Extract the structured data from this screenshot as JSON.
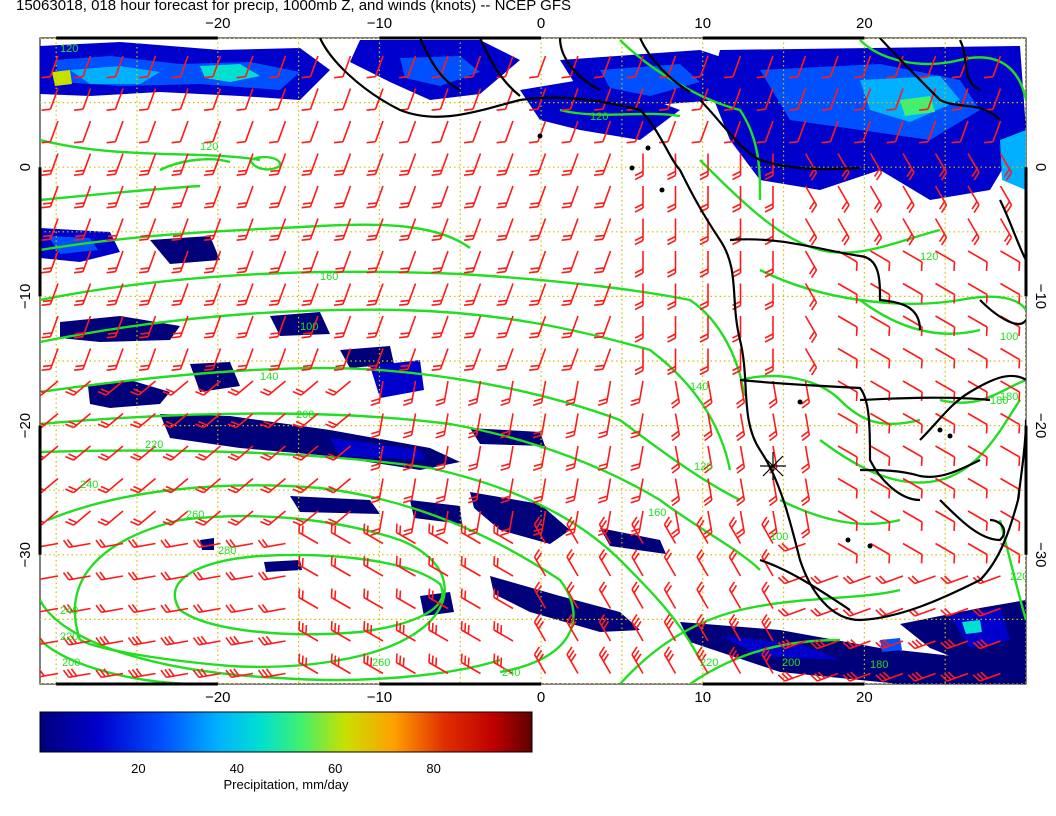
{
  "title": "15063018, 018 hour forecast for precip, 1000mb Z, and winds (knots) -- NCEP GFS",
  "axes": {
    "lon_ticks": [
      -20,
      -10,
      0,
      10,
      20
    ],
    "lat_ticks": [
      0,
      -10,
      -20,
      -30
    ],
    "lon_range": [
      -31,
      30
    ],
    "lat_range": [
      -40,
      10
    ]
  },
  "colorbar": {
    "label": "Precipitation, mm/day",
    "ticks": [
      20,
      40,
      60,
      80
    ],
    "range": [
      0,
      100
    ]
  },
  "contour_labels": [
    "120",
    "120",
    "120",
    "100",
    "140",
    "160",
    "180",
    "200",
    "220",
    "240",
    "260",
    "280",
    "240",
    "220",
    "200",
    "260",
    "240",
    "220",
    "200",
    "180",
    "160",
    "140",
    "120",
    "100",
    "120",
    "100",
    "180",
    "220"
  ],
  "colors": {
    "precip_scale": [
      "#00007a",
      "#0000cc",
      "#0050ff",
      "#00b0ff",
      "#00e0d0",
      "#40f070",
      "#c8e000",
      "#ffa000",
      "#e03000",
      "#c00000",
      "#600000"
    ],
    "contour": "#22dd22",
    "wind_barb": "#ff1a1a",
    "grid": "#d4c000",
    "coastline": "#000000"
  }
}
